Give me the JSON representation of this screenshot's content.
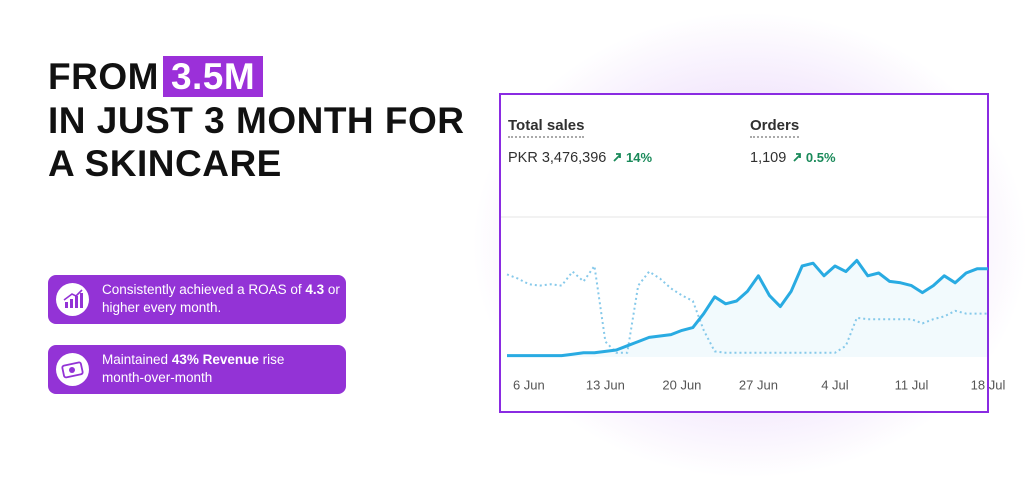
{
  "headline": [
    "FROM",
    "3.5M",
    "IN JUST 3 MONTH FOR",
    "A SKINCARE"
  ],
  "features": [
    [
      "Consistently achieved a ROAS of",
      "4.3",
      "or higher every month."
    ],
    [
      "Maintained",
      "43% Revenue",
      "rise",
      "month-over-month"
    ]
  ],
  "chart_data": {
    "type": "line",
    "metrics": [
      {
        "label": "Total sales",
        "value": "PKR 3,476,396",
        "change": "14%"
      },
      {
        "label": "Orders",
        "value": "1,109",
        "change": "0.5%"
      }
    ],
    "categories": [
      null,
      null,
      "6 Jun",
      null,
      null,
      null,
      null,
      null,
      null,
      "13 Jun",
      null,
      null,
      null,
      null,
      null,
      null,
      "20 Jun",
      null,
      null,
      null,
      null,
      null,
      null,
      "27 Jun",
      null,
      null,
      null,
      null,
      null,
      null,
      "4 Jul",
      null,
      null,
      null,
      null,
      null,
      null,
      "11 Jul",
      null,
      null,
      null,
      null,
      null,
      null,
      "18 Jul"
    ],
    "ylim": [
      0,
      100
    ],
    "grid": true,
    "series": [
      {
        "color": "#29abe2",
        "style": "solid",
        "values": [
          1,
          1,
          1,
          1,
          1,
          1,
          2,
          3,
          3,
          4,
          5,
          8,
          11,
          14,
          15,
          16,
          19,
          21,
          31,
          43,
          38,
          40,
          47,
          58,
          44,
          36,
          47,
          65,
          67,
          58,
          65,
          61,
          69,
          58,
          60,
          54,
          53,
          51,
          46,
          51,
          58,
          53,
          60,
          63,
          63
        ]
      },
      {
        "color": "#86c9ea",
        "style": "dotted",
        "values": [
          59,
          56,
          52,
          51,
          52,
          51,
          61,
          54,
          65,
          11,
          3,
          3,
          51,
          61,
          56,
          49,
          44,
          40,
          19,
          4,
          3,
          3,
          3,
          3,
          3,
          3,
          3,
          3,
          3,
          3,
          3,
          8,
          28,
          27,
          27,
          27,
          27,
          27,
          24,
          27,
          29,
          33,
          31,
          31,
          31
        ]
      }
    ]
  }
}
